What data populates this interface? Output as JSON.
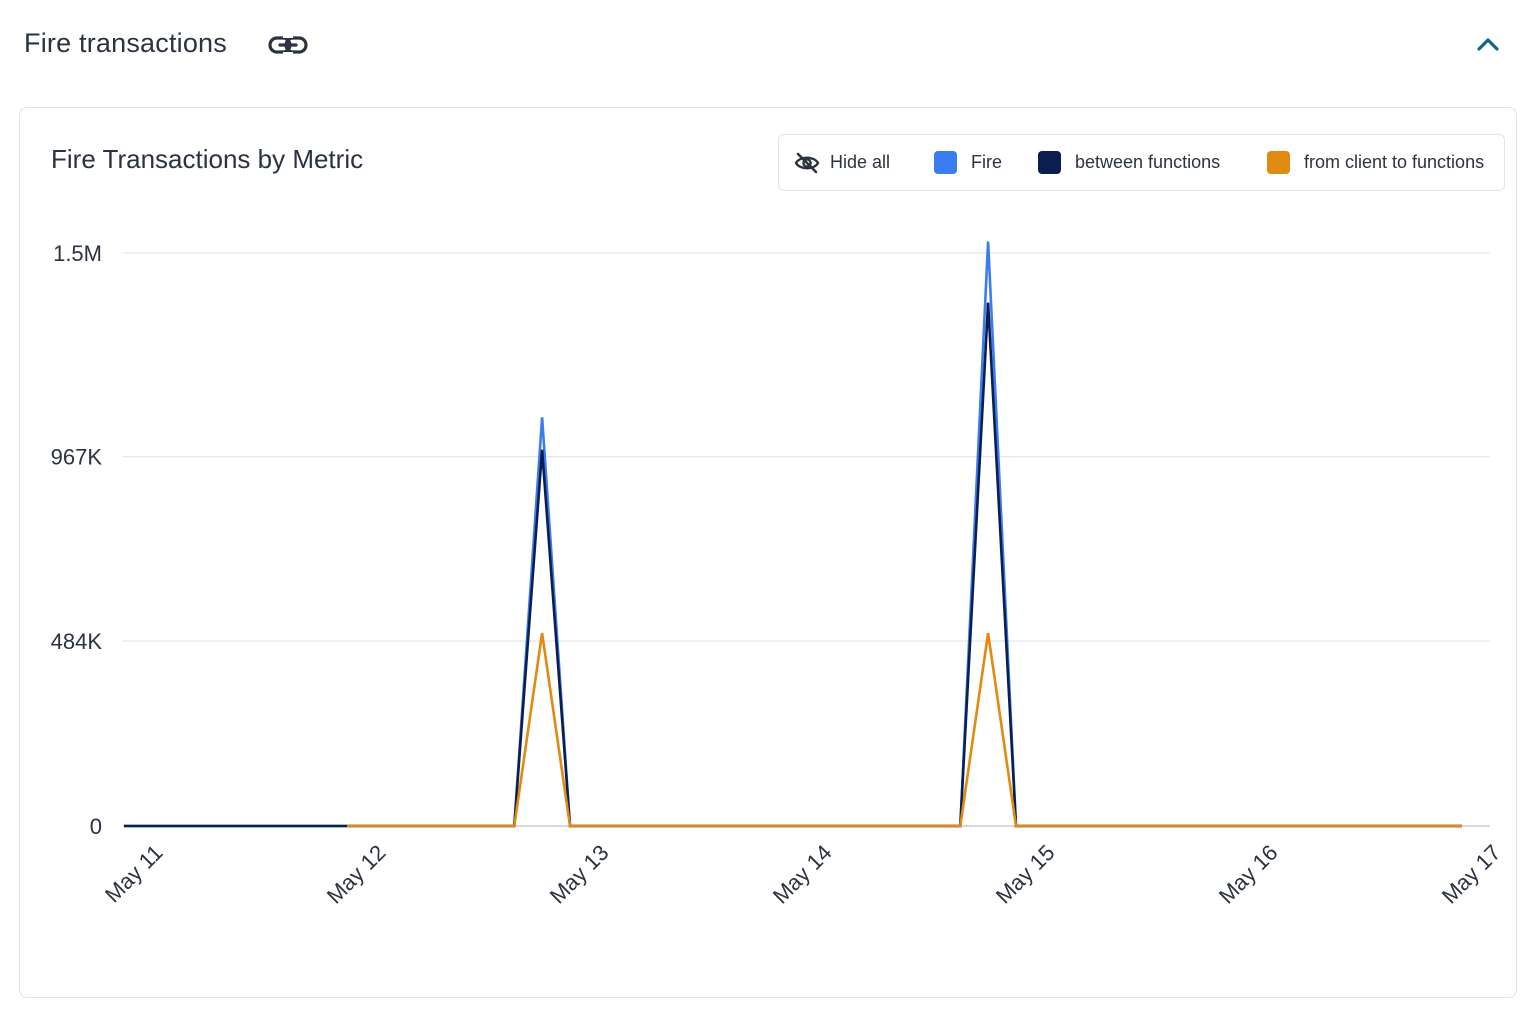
{
  "header": {
    "title": "Fire transactions",
    "link_icon": "link-icon",
    "collapse_icon": "chevron-up-icon"
  },
  "card": {
    "title": "Fire Transactions by Metric",
    "legend": {
      "hide_all_label": "Hide all",
      "hide_icon": "eye-off-icon",
      "items": [
        {
          "label": "Fire",
          "color": "#3b7cf0"
        },
        {
          "label": "between functions",
          "color": "#0b1f4f"
        },
        {
          "label": "from client to functions",
          "color": "#e08a12"
        }
      ]
    }
  },
  "colors": {
    "accent": "#0f6a80",
    "grid": "#e3e6ea"
  },
  "chart_data": {
    "type": "line",
    "title": "Fire Transactions by Metric",
    "xlabel": "",
    "ylabel": "",
    "x_ticks": [
      "May 11",
      "May 12",
      "May 13",
      "May 14",
      "May 15",
      "May 16",
      "May 17"
    ],
    "y_ticks": [
      {
        "value": 0,
        "label": "0"
      },
      {
        "value": 484000,
        "label": "484K"
      },
      {
        "value": 967000,
        "label": "967K"
      },
      {
        "value": 1500000,
        "label": "1.5M"
      }
    ],
    "ylim": [
      0,
      1500000
    ],
    "xlim": [
      "2024-05-11",
      "2024-05-17"
    ],
    "grid": true,
    "legend_position": "top-right",
    "series": [
      {
        "name": "Fire",
        "color": "#3b7cf0",
        "points": [
          [
            "2024-05-11T00:00",
            0
          ],
          [
            "2024-05-11T12:00",
            0
          ],
          [
            "2024-05-12T00:00",
            0
          ],
          [
            "2024-05-12T18:00",
            0
          ],
          [
            "2024-05-12T21:00",
            1070000
          ],
          [
            "2024-05-13T00:00",
            0
          ],
          [
            "2024-05-13T12:00",
            0
          ],
          [
            "2024-05-14T00:00",
            0
          ],
          [
            "2024-05-14T18:00",
            0
          ],
          [
            "2024-05-14T21:00",
            1530000
          ],
          [
            "2024-05-15T00:00",
            0
          ],
          [
            "2024-05-16T00:00",
            0
          ],
          [
            "2024-05-17T00:00",
            0
          ]
        ]
      },
      {
        "name": "between functions",
        "color": "#0b1f4f",
        "points": [
          [
            "2024-05-11T00:00",
            0
          ],
          [
            "2024-05-11T12:00",
            0
          ],
          [
            "2024-05-12T00:00",
            0
          ],
          [
            "2024-05-12T18:00",
            0
          ],
          [
            "2024-05-12T21:00",
            985000
          ],
          [
            "2024-05-13T00:00",
            0
          ],
          [
            "2024-05-13T12:00",
            0
          ],
          [
            "2024-05-14T00:00",
            0
          ],
          [
            "2024-05-14T18:00",
            0
          ],
          [
            "2024-05-14T21:00",
            1370000
          ],
          [
            "2024-05-15T00:00",
            0
          ],
          [
            "2024-05-16T00:00",
            0
          ],
          [
            "2024-05-17T00:00",
            0
          ]
        ]
      },
      {
        "name": "from client to functions",
        "color": "#e08a12",
        "points": [
          [
            "2024-05-12T00:00",
            0
          ],
          [
            "2024-05-12T18:00",
            0
          ],
          [
            "2024-05-12T21:00",
            505000
          ],
          [
            "2024-05-13T00:00",
            0
          ],
          [
            "2024-05-13T12:00",
            0
          ],
          [
            "2024-05-14T00:00",
            0
          ],
          [
            "2024-05-14T18:00",
            0
          ],
          [
            "2024-05-14T21:00",
            505000
          ],
          [
            "2024-05-15T00:00",
            0
          ],
          [
            "2024-05-16T00:00",
            0
          ],
          [
            "2024-05-17T00:00",
            0
          ]
        ]
      }
    ]
  }
}
